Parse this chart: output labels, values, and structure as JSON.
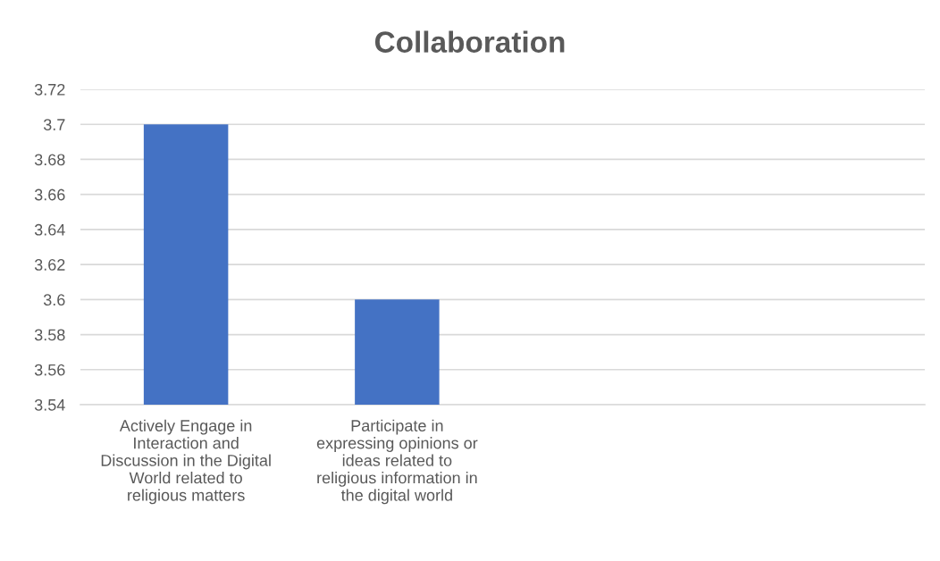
{
  "chart_data": {
    "type": "bar",
    "title": "Collaboration",
    "categories": [
      "Actively Engage in\nInteraction and\nDiscussion in the Digital\nWorld related to\nreligious matters",
      "Participate in\nexpressing opinions or\nideas related to\nreligious information in\nthe digital world",
      null,
      null
    ],
    "values": [
      3.7,
      3.6,
      null,
      null
    ],
    "color": "#4472c4",
    "ylim": [
      3.54,
      3.72
    ],
    "yticks": [
      3.54,
      3.56,
      3.58,
      3.6,
      3.62,
      3.64,
      3.66,
      3.68,
      3.7,
      3.72
    ],
    "grid": "y"
  }
}
